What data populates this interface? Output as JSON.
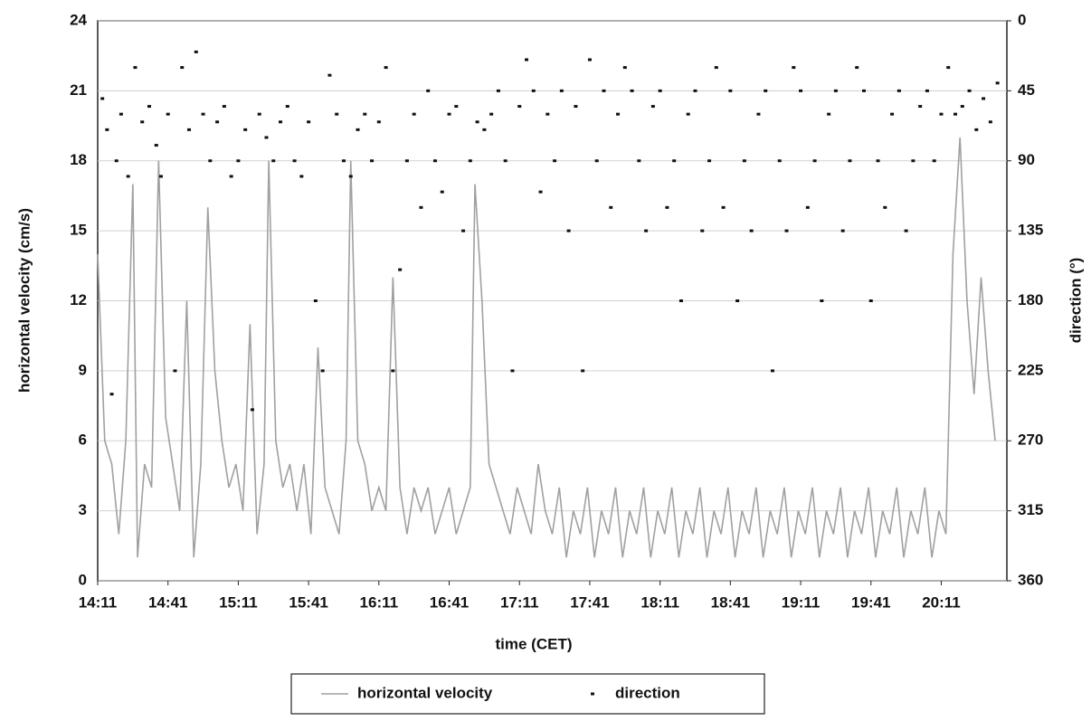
{
  "chart_data": {
    "type": "line",
    "xlabel": "time (CET)",
    "ylabel": "horizontal velocity (cm/s)",
    "y2label": "direction (°)",
    "xlim": [
      "14:11",
      "20:39"
    ],
    "xticks": [
      "14:11",
      "14:41",
      "15:11",
      "15:41",
      "16:11",
      "16:41",
      "17:11",
      "17:41",
      "18:11",
      "18:41",
      "19:11",
      "19:41",
      "20:11"
    ],
    "ylim": [
      0,
      24
    ],
    "yticks": [
      0,
      3,
      6,
      9,
      12,
      15,
      18,
      21,
      24
    ],
    "y2lim": [
      360,
      0
    ],
    "y2ticks": [
      0,
      45,
      90,
      135,
      180,
      225,
      270,
      315,
      360
    ],
    "grid": true,
    "legend": "bottom",
    "series": [
      {
        "name": "horizontal velocity",
        "color": "#a0a0a0",
        "type": "line",
        "x": [
          "14:11",
          "14:14",
          "14:17",
          "14:20",
          "14:23",
          "14:26",
          "14:28",
          "14:31",
          "14:34",
          "14:37",
          "14:40",
          "14:43",
          "14:46",
          "14:49",
          "14:52",
          "14:55",
          "14:58",
          "15:01",
          "15:04",
          "15:07",
          "15:10",
          "15:13",
          "15:16",
          "15:19",
          "15:22",
          "15:24",
          "15:27",
          "15:30",
          "15:33",
          "15:36",
          "15:39",
          "15:42",
          "15:45",
          "15:48",
          "15:51",
          "15:54",
          "15:57",
          "15:59",
          "16:02",
          "16:05",
          "16:08",
          "16:11",
          "16:14",
          "16:17",
          "16:20",
          "16:23",
          "16:26",
          "16:29",
          "16:32",
          "16:35",
          "16:38",
          "16:41",
          "16:44",
          "16:47",
          "16:50",
          "16:52",
          "16:55",
          "16:58",
          "17:01",
          "17:04",
          "17:07",
          "17:10",
          "17:13",
          "17:16",
          "17:19",
          "17:22",
          "17:25",
          "17:28",
          "17:31",
          "17:34",
          "17:37",
          "17:40",
          "17:43",
          "17:46",
          "17:49",
          "17:52",
          "17:55",
          "17:58",
          "18:01",
          "18:04",
          "18:07",
          "18:10",
          "18:13",
          "18:16",
          "18:19",
          "18:22",
          "18:25",
          "18:28",
          "18:31",
          "18:34",
          "18:37",
          "18:40",
          "18:43",
          "18:46",
          "18:49",
          "18:52",
          "18:55",
          "18:58",
          "19:01",
          "19:04",
          "19:07",
          "19:10",
          "19:13",
          "19:16",
          "19:19",
          "19:22",
          "19:25",
          "19:28",
          "19:31",
          "19:34",
          "19:37",
          "19:40",
          "19:43",
          "19:46",
          "19:49",
          "19:52",
          "19:55",
          "19:58",
          "20:01",
          "20:04",
          "20:07",
          "20:10",
          "20:13",
          "20:16",
          "20:19",
          "20:22",
          "20:25",
          "20:28",
          "20:31",
          "20:34"
        ],
        "values": [
          14,
          6,
          5,
          2,
          6,
          17,
          1,
          5,
          4,
          18,
          7,
          5,
          3,
          12,
          1,
          5,
          16,
          9,
          6,
          4,
          5,
          3,
          11,
          2,
          5,
          18,
          6,
          4,
          5,
          3,
          5,
          2,
          10,
          4,
          3,
          2,
          6,
          18,
          6,
          5,
          3,
          4,
          3,
          13,
          4,
          2,
          4,
          3,
          4,
          2,
          3,
          4,
          2,
          3,
          4,
          17,
          12,
          5,
          4,
          3,
          2,
          4,
          3,
          2,
          5,
          3,
          2,
          4,
          1,
          3,
          2,
          4,
          1,
          3,
          2,
          4,
          1,
          3,
          2,
          4,
          1,
          3,
          2,
          4,
          1,
          3,
          2,
          4,
          1,
          3,
          2,
          4,
          1,
          3,
          2,
          4,
          1,
          3,
          2,
          4,
          1,
          3,
          2,
          4,
          1,
          3,
          2,
          4,
          1,
          3,
          2,
          4,
          1,
          3,
          2,
          4,
          1,
          3,
          2,
          4,
          1,
          3,
          2,
          14,
          19,
          12,
          8,
          13,
          9,
          6
        ]
      },
      {
        "name": "direction",
        "color": "#111111",
        "type": "scatter",
        "axis": "y2",
        "x": [
          "14:13",
          "14:15",
          "14:17",
          "14:19",
          "14:21",
          "14:24",
          "14:27",
          "14:30",
          "14:33",
          "14:36",
          "14:38",
          "14:41",
          "14:44",
          "14:47",
          "14:50",
          "14:53",
          "14:56",
          "14:59",
          "15:02",
          "15:05",
          "15:08",
          "15:11",
          "15:14",
          "15:17",
          "15:20",
          "15:23",
          "15:26",
          "15:29",
          "15:32",
          "15:35",
          "15:38",
          "15:41",
          "15:44",
          "15:47",
          "15:50",
          "15:53",
          "15:56",
          "15:59",
          "16:02",
          "16:05",
          "16:08",
          "16:11",
          "16:14",
          "16:17",
          "16:20",
          "16:23",
          "16:26",
          "16:29",
          "16:32",
          "16:35",
          "16:38",
          "16:41",
          "16:44",
          "16:47",
          "16:50",
          "16:53",
          "16:56",
          "16:59",
          "17:02",
          "17:05",
          "17:08",
          "17:11",
          "17:14",
          "17:17",
          "17:20",
          "17:23",
          "17:26",
          "17:29",
          "17:32",
          "17:35",
          "17:38",
          "17:41",
          "17:44",
          "17:47",
          "17:50",
          "17:53",
          "17:56",
          "17:59",
          "18:02",
          "18:05",
          "18:08",
          "18:11",
          "18:14",
          "18:17",
          "18:20",
          "18:23",
          "18:26",
          "18:29",
          "18:32",
          "18:35",
          "18:38",
          "18:41",
          "18:44",
          "18:47",
          "18:50",
          "18:53",
          "18:56",
          "18:59",
          "19:02",
          "19:05",
          "19:08",
          "19:11",
          "19:14",
          "19:17",
          "19:20",
          "19:23",
          "19:26",
          "19:29",
          "19:32",
          "19:35",
          "19:38",
          "19:41",
          "19:44",
          "19:47",
          "19:50",
          "19:53",
          "19:56",
          "19:59",
          "20:02",
          "20:05",
          "20:08",
          "20:11",
          "20:14",
          "20:17",
          "20:20",
          "20:23",
          "20:26",
          "20:29",
          "20:32",
          "20:35"
        ],
        "values": [
          50,
          70,
          240,
          90,
          60,
          100,
          30,
          65,
          55,
          80,
          100,
          60,
          225,
          30,
          70,
          20,
          60,
          90,
          65,
          55,
          100,
          90,
          70,
          250,
          60,
          75,
          90,
          65,
          55,
          90,
          100,
          65,
          180,
          225,
          35,
          60,
          90,
          100,
          70,
          60,
          90,
          65,
          30,
          225,
          160,
          90,
          60,
          120,
          45,
          90,
          110,
          60,
          55,
          135,
          90,
          65,
          70,
          60,
          45,
          90,
          225,
          55,
          25,
          45,
          110,
          60,
          90,
          45,
          135,
          55,
          225,
          25,
          90,
          45,
          120,
          60,
          30,
          45,
          90,
          135,
          55,
          45,
          120,
          90,
          180,
          60,
          45,
          135,
          90,
          30,
          120,
          45,
          180,
          90,
          135,
          60,
          45,
          225,
          90,
          135,
          30,
          45,
          120,
          90,
          180,
          60,
          45,
          135,
          90,
          30,
          45,
          180,
          90,
          120,
          60,
          45,
          135,
          90,
          55,
          45,
          90,
          60,
          30,
          60,
          55,
          45,
          70,
          50,
          65,
          40
        ]
      }
    ]
  }
}
